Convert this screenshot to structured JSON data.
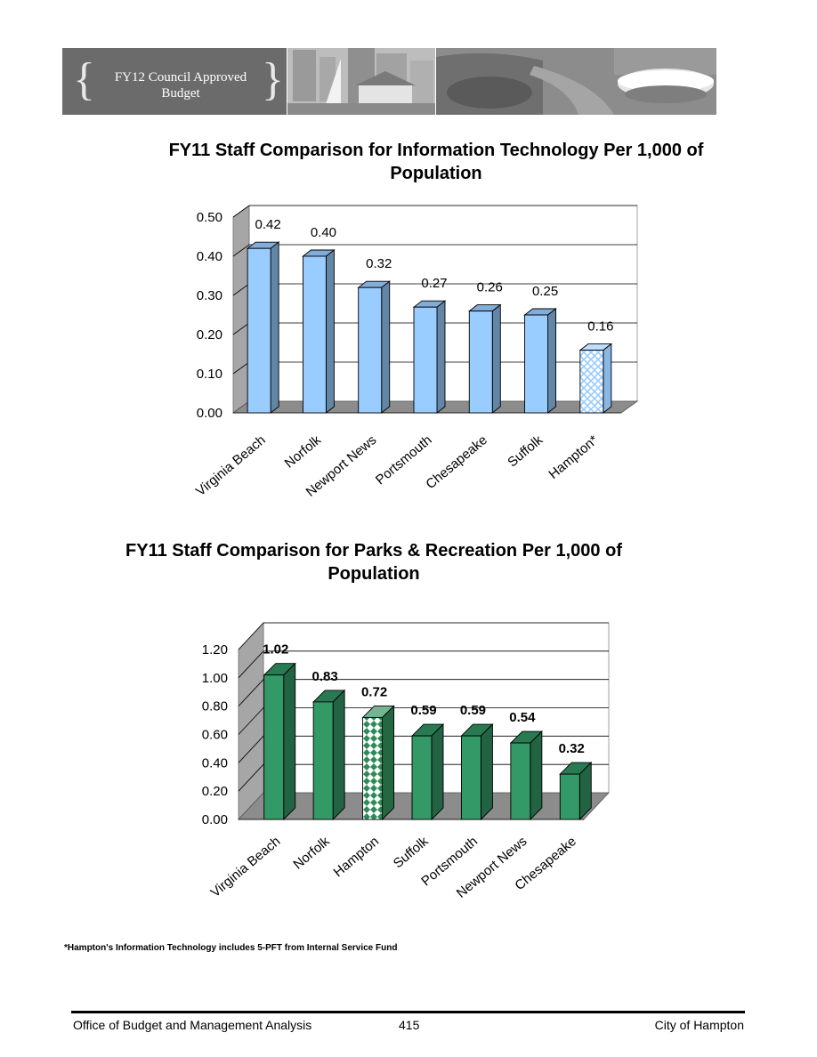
{
  "banner": {
    "title": "FY12 Council Approved Budget",
    "brace_left": "{",
    "brace_right": "}"
  },
  "chart_data": [
    {
      "type": "bar",
      "title": "FY11 Staff Comparison for Information Technology Per 1,000 of Population",
      "categories": [
        "Virginia Beach",
        "Norfolk",
        "Newport News",
        "Portsmouth",
        "Chesapeake",
        "Suffolk",
        "Hampton*"
      ],
      "values": [
        0.42,
        0.4,
        0.32,
        0.27,
        0.26,
        0.25,
        0.16
      ],
      "value_labels": [
        "0.42",
        "0.40",
        "0.32",
        "0.27",
        "0.26",
        "0.25",
        "0.16"
      ],
      "yticks": [
        "0.00",
        "0.10",
        "0.20",
        "0.30",
        "0.40",
        "0.50"
      ],
      "ylim": [
        0,
        0.5
      ],
      "xlabel": "",
      "ylabel": "",
      "grid": true,
      "bar_color": "#99ccff",
      "highlight_category": "Hampton*",
      "highlight_pattern": "light blue crosshatch"
    },
    {
      "type": "bar",
      "title": "FY11 Staff Comparison for Parks & Recreation Per 1,000 of Population",
      "categories": [
        "Virginia Beach",
        "Norfolk",
        "Hampton",
        "Suffolk",
        "Portsmouth",
        "Newport News",
        "Chesapeake"
      ],
      "values": [
        1.02,
        0.83,
        0.72,
        0.59,
        0.59,
        0.54,
        0.32
      ],
      "value_labels": [
        "1.02",
        "0.83",
        "0.72",
        "0.59",
        "0.59",
        "0.54",
        "0.32"
      ],
      "yticks": [
        "0.00",
        "0.20",
        "0.40",
        "0.60",
        "0.80",
        "1.00",
        "1.20"
      ],
      "ylim": [
        0,
        1.2
      ],
      "xlabel": "",
      "ylabel": "",
      "grid": true,
      "bar_color": "#339966",
      "highlight_category": "Hampton",
      "highlight_pattern": "green diamond checker"
    }
  ],
  "footnote": "*Hampton's Information Technology includes 5-PFT from Internal Service Fund",
  "footer": {
    "left": "Office of Budget and Management Analysis",
    "center": "415",
    "right": "City of Hampton"
  }
}
